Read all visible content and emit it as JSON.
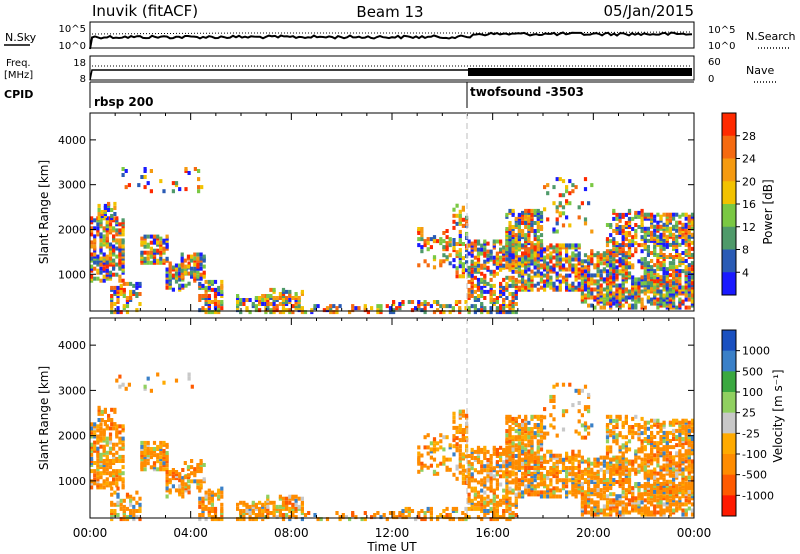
{
  "header": {
    "station": "Inuvik (fitACF)",
    "beam": "Beam 13",
    "date": "05/Jan/2015"
  },
  "top_panels": {
    "nsky_label": "N.Sky",
    "nsky_tick_top": "10^5",
    "nsky_tick_bottom": "10^0",
    "nsearch_label": "N.Search",
    "nsearch_tick_top": "10^5",
    "nsearch_tick_bottom": "10^0",
    "freq_label_line1": "Freq.",
    "freq_label_line2": "[MHz]",
    "freq_tick_top": "18",
    "freq_tick_bottom": "8",
    "nave_label": "Nave",
    "nave_tick_top": "60",
    "nave_tick_bottom": "0",
    "cpid_label": "CPID",
    "cpid_1": "rbsp 200",
    "cpid_2": "twofsound -3503"
  },
  "colors": {
    "power_scale": [
      "#1a1aff",
      "#2a5bb5",
      "#4f9a6a",
      "#7ac843",
      "#f2c200",
      "#f59a10",
      "#f56a10",
      "#ff2a00"
    ],
    "velocity_scale": [
      "#ff1a00",
      "#ff5a00",
      "#ff8c00",
      "#ffaa00",
      "#c8c8c8",
      "#90d060",
      "#3aa840",
      "#3a80c8",
      "#1a50c0"
    ]
  },
  "chart_data": [
    {
      "type": "heatmap",
      "name": "power",
      "ylabel": "Slant Range [km]",
      "yticks": [
        "1000",
        "2000",
        "3000",
        "4000"
      ],
      "xticks": [
        "00:00",
        "04:00",
        "08:00",
        "12:00",
        "16:00",
        "20:00",
        "00:00"
      ],
      "colorbar_label": "Power [dB]",
      "colorbar_ticks": [
        "4",
        "8",
        "12",
        "16",
        "20",
        "24",
        "28"
      ],
      "xlim_hours": [
        0,
        24
      ],
      "ylim_km": [
        180,
        4600
      ],
      "cpid_change_hour": 15
    },
    {
      "type": "heatmap",
      "name": "velocity",
      "ylabel": "Slant Range [km]",
      "yticks": [
        "1000",
        "2000",
        "3000",
        "4000"
      ],
      "xticks": [
        "00:00",
        "04:00",
        "08:00",
        "12:00",
        "16:00",
        "20:00",
        "00:00"
      ],
      "xlabel": "Time UT",
      "colorbar_label": "Velocity [m s⁻¹]",
      "colorbar_ticks": [
        "1000",
        "500",
        "100",
        "25",
        "-25",
        "-100",
        "-500",
        "-1000"
      ],
      "xlim_hours": [
        0,
        24
      ],
      "ylim_km": [
        180,
        4600
      ],
      "cpid_change_hour": 15
    }
  ]
}
